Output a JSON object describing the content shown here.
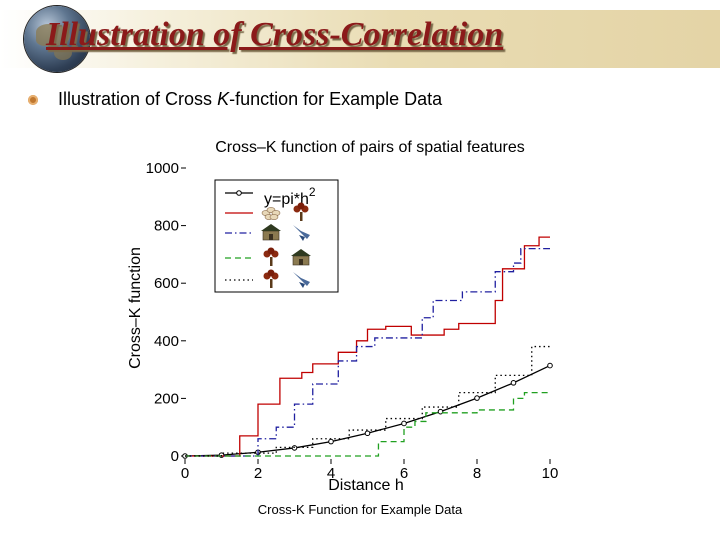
{
  "slide": {
    "title": "Illustration of Cross-Correlation",
    "bullet_pre": "Illustration of Cross ",
    "bullet_ital": "K",
    "bullet_post": "-function for Example Data",
    "caption": "Cross-K Function for Example Data"
  },
  "chart_data": {
    "type": "line",
    "title": "Cross–K function of pairs of spatial features",
    "xlabel": "Distance h",
    "ylabel": "Cross–K function",
    "xlim": [
      0,
      10
    ],
    "ylim": [
      0,
      1000
    ],
    "x_ticks": [
      "0",
      "2",
      "4",
      "6",
      "8",
      "10"
    ],
    "y_ticks": [
      "0",
      "200",
      "400",
      "600",
      "800",
      "1000"
    ],
    "legend": {
      "placement": "top-left",
      "entries": [
        {
          "label": "y=pi*h",
          "superscript": "2",
          "series": "reference",
          "icons": []
        },
        {
          "label": "",
          "series": "red",
          "icons": [
            "flower-icon",
            "tree-icon"
          ]
        },
        {
          "label": "",
          "series": "blue",
          "icons": [
            "house-icon",
            "bird-icon"
          ]
        },
        {
          "label": "",
          "series": "green",
          "icons": [
            "tree-icon",
            "house-icon"
          ]
        },
        {
          "label": "",
          "series": "black",
          "icons": [
            "tree-icon",
            "bird-icon"
          ]
        }
      ]
    },
    "series": [
      {
        "color": "#000000",
        "dash": "solid",
        "markers": true,
        "x": [
          0,
          1,
          2,
          3,
          4,
          5,
          6,
          7,
          8,
          9,
          10
        ],
        "y": [
          0,
          3,
          13,
          28,
          50,
          79,
          113,
          154,
          201,
          254,
          314
        ]
      },
      {
        "color": "#c00000",
        "dash": "solid",
        "markers": false,
        "x": [
          0,
          1.5,
          1.5,
          2.0,
          2.0,
          2.6,
          2.6,
          3.2,
          3.2,
          3.5,
          3.5,
          4.2,
          4.2,
          4.7,
          4.7,
          5.0,
          5.0,
          5.5,
          5.5,
          6.2,
          6.2,
          7.1,
          7.1,
          7.5,
          7.5,
          8.5,
          8.5,
          8.7,
          8.7,
          9.3,
          9.3,
          9.7,
          9.7,
          10
        ],
        "y": [
          0,
          0,
          70,
          70,
          180,
          180,
          270,
          270,
          290,
          290,
          320,
          320,
          360,
          360,
          400,
          400,
          440,
          440,
          450,
          450,
          420,
          420,
          440,
          440,
          460,
          460,
          540,
          540,
          650,
          650,
          730,
          730,
          760,
          760
        ]
      },
      {
        "color": "#2020a0",
        "dash": "dashdot",
        "markers": false,
        "x": [
          0,
          2.0,
          2.0,
          2.5,
          2.5,
          3.0,
          3.0,
          3.5,
          3.5,
          4.2,
          4.2,
          4.7,
          4.7,
          5.2,
          5.2,
          6.5,
          6.5,
          6.8,
          6.8,
          7.6,
          7.6,
          8.5,
          8.5,
          9.0,
          9.0,
          9.2,
          9.2,
          10
        ],
        "y": [
          0,
          0,
          60,
          60,
          100,
          100,
          180,
          180,
          250,
          250,
          330,
          330,
          380,
          380,
          410,
          410,
          480,
          480,
          540,
          540,
          570,
          570,
          640,
          640,
          670,
          670,
          720,
          720
        ]
      },
      {
        "color": "#20a020",
        "dash": "dashed",
        "markers": false,
        "x": [
          0,
          5.3,
          5.3,
          6.0,
          6.0,
          6.3,
          6.3,
          6.6,
          6.6,
          7.0,
          7.0,
          8.0,
          8.0,
          9.0,
          9.0,
          9.3,
          9.3,
          10
        ],
        "y": [
          0,
          0,
          50,
          50,
          100,
          100,
          120,
          120,
          150,
          150,
          150,
          150,
          160,
          160,
          200,
          200,
          220,
          220
        ]
      },
      {
        "color": "#000000",
        "dash": "dotted",
        "markers": false,
        "x": [
          0,
          1.0,
          1.0,
          2.5,
          2.5,
          3.5,
          3.5,
          4.5,
          4.5,
          5.5,
          5.5,
          6.5,
          6.5,
          7.5,
          7.5,
          8.5,
          8.5,
          9.5,
          9.5,
          10
        ],
        "y": [
          0,
          0,
          10,
          10,
          30,
          30,
          60,
          60,
          90,
          90,
          130,
          130,
          170,
          170,
          220,
          220,
          280,
          280,
          380,
          380
        ]
      }
    ]
  }
}
